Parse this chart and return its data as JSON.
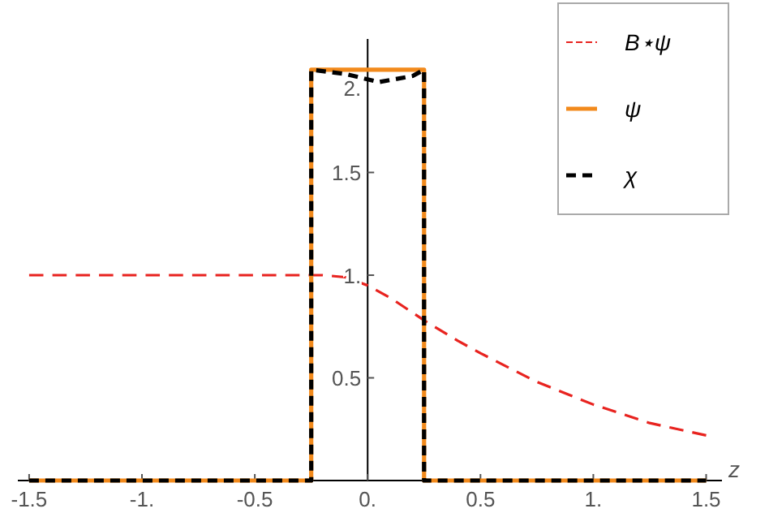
{
  "chart_data": {
    "type": "line",
    "xlabel": "z",
    "xlim": [
      -1.55,
      1.57
    ],
    "ylim": [
      0,
      2.15
    ],
    "xticks": [
      {
        "value": -1.5,
        "label": "-1.5"
      },
      {
        "value": -1,
        "label": "-1."
      },
      {
        "value": -0.5,
        "label": "-0.5"
      },
      {
        "value": 0,
        "label": "0."
      },
      {
        "value": 0.5,
        "label": "0.5"
      },
      {
        "value": 1,
        "label": "1."
      },
      {
        "value": 1.5,
        "label": "1.5"
      }
    ],
    "yticks": [
      0.5,
      {
        "value": 1,
        "label": "1."
      },
      1.5,
      {
        "value": 2,
        "label": "2."
      }
    ],
    "legend": "top right",
    "grid": false,
    "marker": "none",
    "series": [
      {
        "name": "B⋆ψ",
        "color": "#e8231f",
        "line_style": "dashed",
        "x": [
          -1.5,
          -0.25,
          -0.2,
          -0.1,
          0,
          0.1,
          0.25,
          0.4,
          0.5,
          0.75,
          1,
          1.25,
          1.5
        ],
        "values": [
          1,
          1,
          1,
          0.99,
          0.95,
          0.89,
          0.78,
          0.68,
          0.62,
          0.48,
          0.37,
          0.28,
          0.22
        ]
      },
      {
        "name": "ψ",
        "color": "#f28a1c",
        "line_style": "solid",
        "x": [
          -1.5,
          -0.25,
          -0.25,
          0.25,
          0.25,
          1.5
        ],
        "values": [
          0,
          0,
          2,
          2,
          0,
          0
        ]
      },
      {
        "name": "χ",
        "color": "#000000",
        "line_style": "dashed",
        "x": [
          -1.5,
          -0.25,
          -0.25,
          -0.1,
          0.05,
          0.2,
          0.25,
          0.25,
          1.5
        ],
        "values": [
          0,
          0,
          2,
          1.98,
          1.94,
          1.97,
          2,
          0,
          0
        ]
      }
    ]
  }
}
